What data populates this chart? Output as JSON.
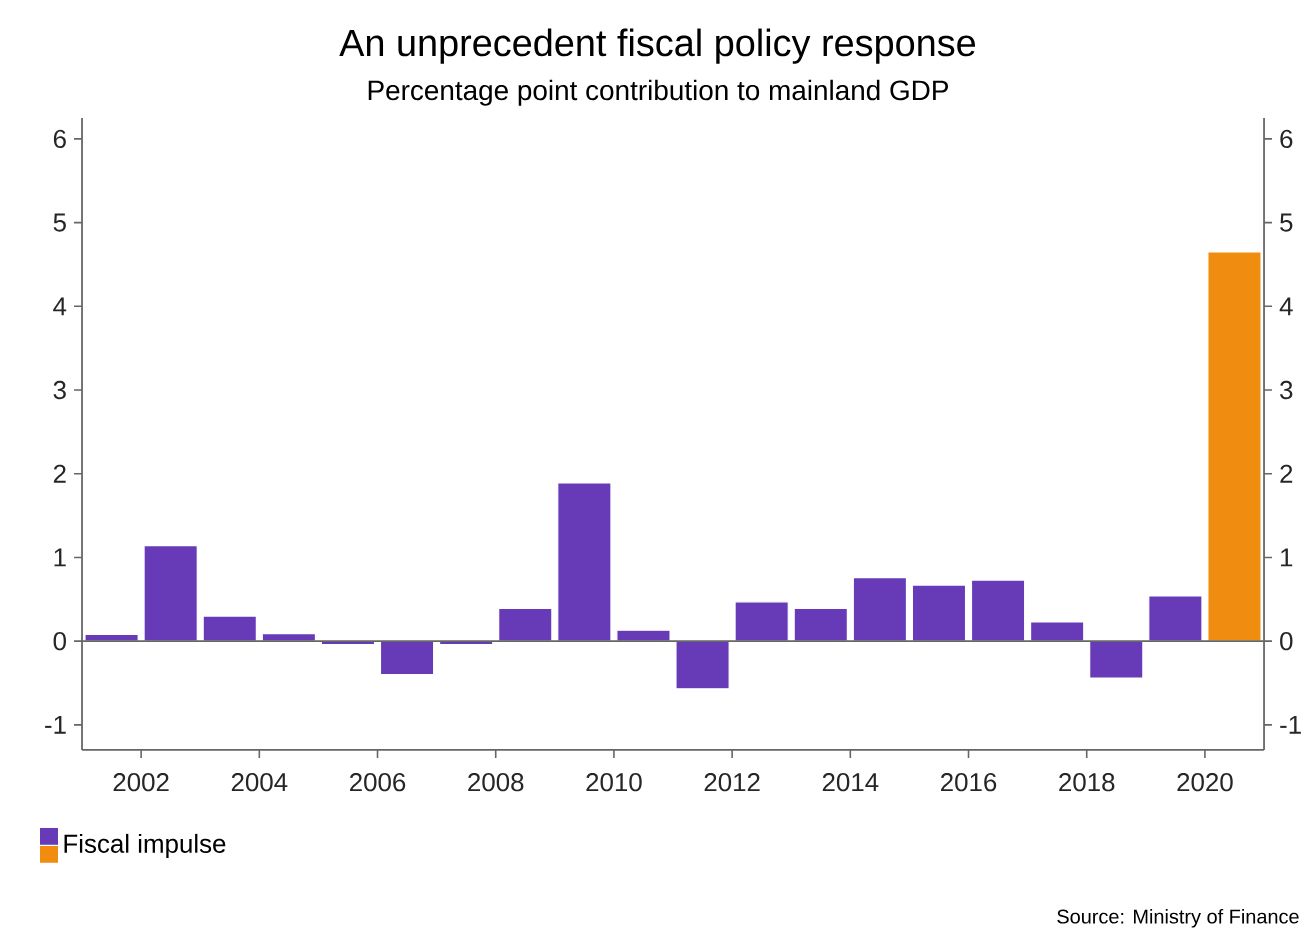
{
  "chart_data": {
    "type": "bar",
    "title": "An unprecedent fiscal policy response",
    "subtitle": "Percentage point contribution to mainland GDP",
    "annotations": [
      "Source: Ministry of Finance"
    ],
    "x": [
      2001.5,
      2002.5,
      2003.5,
      2004.5,
      2005.5,
      2006.5,
      2007.5,
      2008.5,
      2009.5,
      2010.5,
      2011.5,
      2012.5,
      2013.5,
      2014.5,
      2015.5,
      2016.5,
      2017.5,
      2018.5,
      2019.5,
      2020.5
    ],
    "ref_lines": [
      {
        "axis": "y",
        "value": 0
      }
    ],
    "series": [
      {
        "name": "Fiscal impulse",
        "values": [
          0.08,
          1.14,
          0.3,
          0.09,
          -0.04,
          -0.4,
          -0.04,
          0.39,
          1.89,
          0.13,
          -0.57,
          0.47,
          0.39,
          0.76,
          0.67,
          0.73,
          0.23,
          -0.44,
          0.54,
          4.65
        ],
        "colors": [
          "#673ab7",
          "#673ab7",
          "#673ab7",
          "#673ab7",
          "#673ab7",
          "#673ab7",
          "#673ab7",
          "#673ab7",
          "#673ab7",
          "#673ab7",
          "#673ab7",
          "#673ab7",
          "#673ab7",
          "#673ab7",
          "#673ab7",
          "#673ab7",
          "#673ab7",
          "#673ab7",
          "#673ab7",
          "#f08c10"
        ]
      }
    ],
    "xlim": [
      2001,
      2021
    ],
    "xticks": [
      2002,
      2004,
      2006,
      2008,
      2010,
      2012,
      2014,
      2016,
      2018,
      2020
    ],
    "ylim": [
      -1.3,
      6.25
    ],
    "yticks": [
      -1,
      0,
      1,
      2,
      3,
      4,
      5,
      6
    ],
    "y2lim": [
      -1.3,
      6.25
    ],
    "y2ticks": [
      -1,
      0,
      1,
      2,
      3,
      4,
      5,
      6
    ],
    "grid": false,
    "legend": "bottom left"
  }
}
